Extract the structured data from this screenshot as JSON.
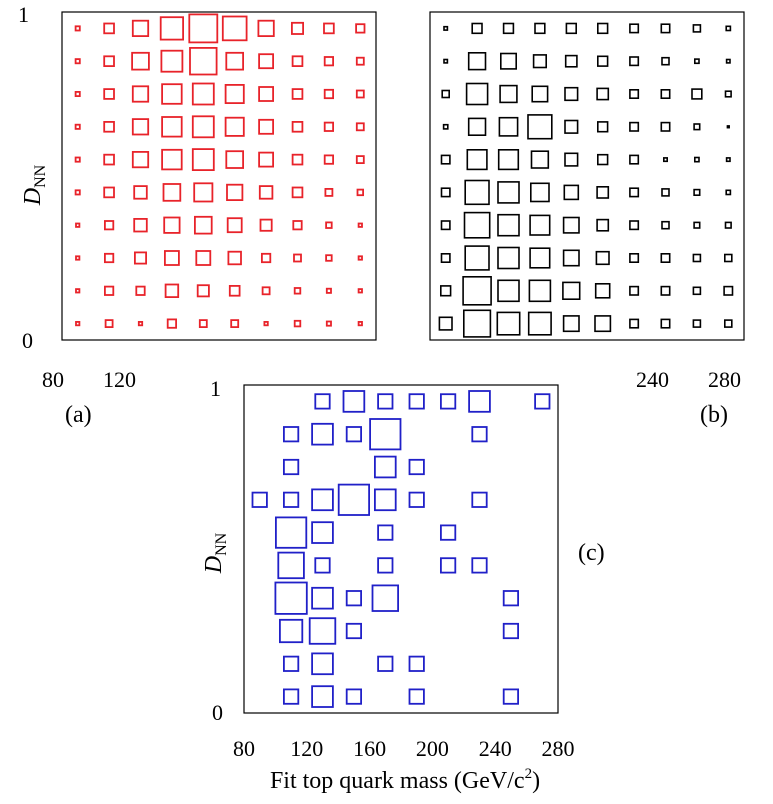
{
  "colors": {
    "a": "#e8232a",
    "b": "#000000",
    "c": "#2020c8",
    "axis": "#000000"
  },
  "chart_data": [
    {
      "type": "scatter",
      "label": "(a)",
      "xlabel": "",
      "ylabel": "D",
      "ylabel_sub": "NN",
      "xlim": [
        80,
        280
      ],
      "ylim": [
        0,
        1
      ],
      "x_tick_labels": [
        "80",
        "120"
      ],
      "y_tick_labels": [
        "0",
        "1"
      ],
      "x": [
        90,
        110,
        130,
        150,
        170,
        190,
        210,
        230,
        250,
        270
      ],
      "y": [
        0.95,
        0.85,
        0.75,
        0.65,
        0.55,
        0.45,
        0.35,
        0.25,
        0.15,
        0.05
      ],
      "box_size": [
        [
          0.15,
          0.35,
          0.55,
          0.8,
          1.0,
          0.85,
          0.55,
          0.4,
          0.35,
          0.3
        ],
        [
          0.15,
          0.35,
          0.6,
          0.75,
          0.95,
          0.6,
          0.5,
          0.35,
          0.3,
          0.25
        ],
        [
          0.15,
          0.35,
          0.55,
          0.7,
          0.75,
          0.65,
          0.5,
          0.35,
          0.3,
          0.25
        ],
        [
          0.15,
          0.35,
          0.55,
          0.7,
          0.75,
          0.65,
          0.5,
          0.35,
          0.3,
          0.25
        ],
        [
          0.15,
          0.35,
          0.55,
          0.7,
          0.75,
          0.6,
          0.5,
          0.35,
          0.3,
          0.25
        ],
        [
          0.15,
          0.35,
          0.45,
          0.6,
          0.65,
          0.55,
          0.45,
          0.35,
          0.25,
          0.2
        ],
        [
          0.12,
          0.3,
          0.45,
          0.55,
          0.6,
          0.5,
          0.4,
          0.3,
          0.2,
          0.12
        ],
        [
          0.12,
          0.3,
          0.4,
          0.5,
          0.5,
          0.45,
          0.3,
          0.25,
          0.2,
          0.12
        ],
        [
          0.12,
          0.3,
          0.3,
          0.45,
          0.4,
          0.35,
          0.25,
          0.2,
          0.15,
          0.12
        ],
        [
          0.12,
          0.25,
          0.12,
          0.3,
          0.25,
          0.25,
          0.12,
          0.2,
          0.15,
          0.12
        ]
      ]
    },
    {
      "type": "scatter",
      "label": "(b)",
      "xlabel": "",
      "ylabel": "",
      "xlim": [
        80,
        280
      ],
      "ylim": [
        0,
        1
      ],
      "x_tick_labels": [
        "240",
        "280"
      ],
      "y_tick_labels": [],
      "x": [
        90,
        110,
        130,
        150,
        170,
        190,
        210,
        230,
        250,
        270
      ],
      "y": [
        0.95,
        0.85,
        0.75,
        0.65,
        0.55,
        0.45,
        0.35,
        0.25,
        0.15,
        0.05
      ],
      "box_size": [
        [
          0.12,
          0.35,
          0.35,
          0.35,
          0.35,
          0.35,
          0.3,
          0.3,
          0.25,
          0.15
        ],
        [
          0.12,
          0.6,
          0.55,
          0.45,
          0.4,
          0.35,
          0.3,
          0.25,
          0.15,
          0.12
        ],
        [
          0.25,
          0.75,
          0.6,
          0.55,
          0.45,
          0.4,
          0.3,
          0.3,
          0.35,
          0.2
        ],
        [
          0.15,
          0.6,
          0.65,
          0.85,
          0.45,
          0.35,
          0.3,
          0.3,
          0.2,
          0.1
        ],
        [
          0.3,
          0.7,
          0.7,
          0.6,
          0.45,
          0.35,
          0.3,
          0.12,
          0.15,
          0.12
        ],
        [
          0.3,
          0.85,
          0.75,
          0.65,
          0.5,
          0.4,
          0.3,
          0.25,
          0.2,
          0.15
        ],
        [
          0.3,
          0.9,
          0.75,
          0.7,
          0.55,
          0.4,
          0.3,
          0.25,
          0.2,
          0.2
        ],
        [
          0.3,
          0.85,
          0.75,
          0.7,
          0.55,
          0.45,
          0.3,
          0.3,
          0.25,
          0.25
        ],
        [
          0.35,
          1.0,
          0.75,
          0.75,
          0.6,
          0.5,
          0.3,
          0.3,
          0.25,
          0.3
        ],
        [
          0.45,
          0.95,
          0.8,
          0.8,
          0.55,
          0.55,
          0.3,
          0.3,
          0.25,
          0.25
        ]
      ]
    },
    {
      "type": "scatter",
      "label": "(c)",
      "xlabel": "Fit top quark mass (GeV/c",
      "xlabel_sup": "2",
      "xlabel_end": ")",
      "ylabel": "D",
      "ylabel_sub": "NN",
      "xlim": [
        80,
        280
      ],
      "ylim": [
        0,
        1
      ],
      "x_tick_labels": [
        "80",
        "120",
        "160",
        "200",
        "240",
        "280"
      ],
      "y_tick_labels": [
        "0",
        "1"
      ],
      "points": [
        {
          "x": 130,
          "y": 0.95,
          "s": 0.45
        },
        {
          "x": 150,
          "y": 0.95,
          "s": 0.65
        },
        {
          "x": 170,
          "y": 0.95,
          "s": 0.45
        },
        {
          "x": 190,
          "y": 0.95,
          "s": 0.45
        },
        {
          "x": 210,
          "y": 0.95,
          "s": 0.45
        },
        {
          "x": 230,
          "y": 0.95,
          "s": 0.65
        },
        {
          "x": 270,
          "y": 0.95,
          "s": 0.45
        },
        {
          "x": 110,
          "y": 0.85,
          "s": 0.45
        },
        {
          "x": 130,
          "y": 0.85,
          "s": 0.65
        },
        {
          "x": 150,
          "y": 0.85,
          "s": 0.45
        },
        {
          "x": 170,
          "y": 0.85,
          "s": 0.95
        },
        {
          "x": 230,
          "y": 0.85,
          "s": 0.45
        },
        {
          "x": 110,
          "y": 0.75,
          "s": 0.45
        },
        {
          "x": 170,
          "y": 0.75,
          "s": 0.65
        },
        {
          "x": 190,
          "y": 0.75,
          "s": 0.45
        },
        {
          "x": 90,
          "y": 0.65,
          "s": 0.45
        },
        {
          "x": 110,
          "y": 0.65,
          "s": 0.45
        },
        {
          "x": 130,
          "y": 0.65,
          "s": 0.65
        },
        {
          "x": 150,
          "y": 0.65,
          "s": 0.95
        },
        {
          "x": 170,
          "y": 0.65,
          "s": 0.65
        },
        {
          "x": 190,
          "y": 0.65,
          "s": 0.45
        },
        {
          "x": 230,
          "y": 0.65,
          "s": 0.45
        },
        {
          "x": 110,
          "y": 0.55,
          "s": 0.95
        },
        {
          "x": 130,
          "y": 0.55,
          "s": 0.65
        },
        {
          "x": 170,
          "y": 0.55,
          "s": 0.45
        },
        {
          "x": 210,
          "y": 0.55,
          "s": 0.45
        },
        {
          "x": 110,
          "y": 0.45,
          "s": 0.8
        },
        {
          "x": 130,
          "y": 0.45,
          "s": 0.45
        },
        {
          "x": 170,
          "y": 0.45,
          "s": 0.45
        },
        {
          "x": 210,
          "y": 0.45,
          "s": 0.45
        },
        {
          "x": 230,
          "y": 0.45,
          "s": 0.45
        },
        {
          "x": 110,
          "y": 0.35,
          "s": 0.98
        },
        {
          "x": 130,
          "y": 0.35,
          "s": 0.65
        },
        {
          "x": 150,
          "y": 0.35,
          "s": 0.45
        },
        {
          "x": 170,
          "y": 0.35,
          "s": 0.8
        },
        {
          "x": 250,
          "y": 0.35,
          "s": 0.45
        },
        {
          "x": 110,
          "y": 0.25,
          "s": 0.7
        },
        {
          "x": 130,
          "y": 0.25,
          "s": 0.8
        },
        {
          "x": 150,
          "y": 0.25,
          "s": 0.45
        },
        {
          "x": 250,
          "y": 0.25,
          "s": 0.45
        },
        {
          "x": 110,
          "y": 0.15,
          "s": 0.45
        },
        {
          "x": 130,
          "y": 0.15,
          "s": 0.65
        },
        {
          "x": 170,
          "y": 0.15,
          "s": 0.45
        },
        {
          "x": 190,
          "y": 0.15,
          "s": 0.45
        },
        {
          "x": 110,
          "y": 0.05,
          "s": 0.45
        },
        {
          "x": 130,
          "y": 0.05,
          "s": 0.65
        },
        {
          "x": 150,
          "y": 0.05,
          "s": 0.45
        },
        {
          "x": 190,
          "y": 0.05,
          "s": 0.45
        },
        {
          "x": 250,
          "y": 0.05,
          "s": 0.45
        }
      ]
    }
  ]
}
